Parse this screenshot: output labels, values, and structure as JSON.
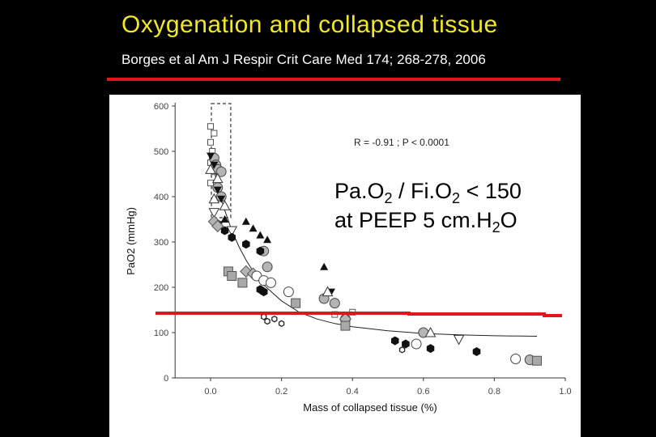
{
  "slide": {
    "title": "Oxygenation and collapsed tissue",
    "citation": "Borges et al Am J Respir Crit Care Med 174; 268-278, 2006",
    "accent_color": "#e3141a",
    "title_color": "#f2e82a"
  },
  "callout": {
    "line1_pre": "Pa.O",
    "line1_sub1": "2",
    "line1_mid": " / Fi.O",
    "line1_sub2": "2",
    "line1_post": " < 150",
    "line2_pre": "at PEEP 5 cm.H",
    "line2_sub": "2",
    "line2_post": "O"
  },
  "chart_data": {
    "type": "scatter",
    "xlabel": "Mass of collapsed tissue (%)",
    "ylabel": "PaO2 (mmHg)",
    "xlim": [
      -0.1,
      1.0
    ],
    "ylim": [
      0,
      600
    ],
    "xticks": [
      "0.0",
      "0.2",
      "0.4",
      "0.6",
      "0.8",
      "1.0"
    ],
    "xtick_values": [
      0,
      0.2,
      0.4,
      0.6,
      0.8,
      1.0
    ],
    "yticks": [
      "0",
      "100",
      "200",
      "300",
      "400",
      "500",
      "600"
    ],
    "ytick_values": [
      0,
      100,
      200,
      300,
      400,
      500,
      600
    ],
    "annotation": "R = -0.91 ; P < 0.0001",
    "threshold_line_y": 150,
    "threshold_color": "#e3141a",
    "highlight_box": {
      "x": [
        0.0,
        0.05
      ],
      "y": [
        0,
        600
      ]
    },
    "fit_curve": [
      [
        0.0,
        500
      ],
      [
        0.02,
        420
      ],
      [
        0.04,
        370
      ],
      [
        0.06,
        325
      ],
      [
        0.08,
        290
      ],
      [
        0.1,
        260
      ],
      [
        0.12,
        235
      ],
      [
        0.15,
        205
      ],
      [
        0.2,
        170
      ],
      [
        0.25,
        145
      ],
      [
        0.3,
        130
      ],
      [
        0.35,
        120
      ],
      [
        0.4,
        113
      ],
      [
        0.5,
        104
      ],
      [
        0.6,
        98
      ],
      [
        0.7,
        95
      ],
      [
        0.8,
        93
      ],
      [
        0.92,
        92
      ]
    ],
    "series": [
      {
        "marker": "open-square",
        "points": [
          [
            0.0,
            555
          ],
          [
            0.01,
            540
          ],
          [
            0.0,
            520
          ],
          [
            0.005,
            500
          ],
          [
            0.0,
            475
          ],
          [
            0.01,
            455
          ],
          [
            0.0,
            430
          ],
          [
            0.35,
            140
          ],
          [
            0.4,
            145
          ]
        ]
      },
      {
        "marker": "gray-circle",
        "points": [
          [
            0.01,
            485
          ],
          [
            0.015,
            470
          ],
          [
            0.02,
            460
          ],
          [
            0.03,
            455
          ],
          [
            0.02,
            420
          ],
          [
            0.03,
            400
          ],
          [
            0.15,
            280
          ],
          [
            0.16,
            245
          ],
          [
            0.32,
            175
          ],
          [
            0.35,
            165
          ],
          [
            0.38,
            130
          ],
          [
            0.6,
            100
          ],
          [
            0.9,
            40
          ]
        ]
      },
      {
        "marker": "filled-triangle-down",
        "points": [
          [
            0.0,
            490
          ],
          [
            0.01,
            470
          ],
          [
            0.02,
            415
          ],
          [
            0.03,
            395
          ],
          [
            0.34,
            190
          ]
        ]
      },
      {
        "marker": "open-triangle",
        "points": [
          [
            0.0,
            460
          ],
          [
            0.02,
            440
          ],
          [
            0.01,
            395
          ],
          [
            0.04,
            380
          ],
          [
            0.33,
            190
          ],
          [
            0.62,
            100
          ]
        ]
      },
      {
        "marker": "open-triangle-down",
        "points": [
          [
            0.01,
            365
          ],
          [
            0.02,
            335
          ],
          [
            0.06,
            325
          ],
          [
            0.7,
            85
          ]
        ]
      },
      {
        "marker": "filled-triangle",
        "points": [
          [
            0.04,
            350
          ],
          [
            0.1,
            345
          ],
          [
            0.12,
            330
          ],
          [
            0.14,
            315
          ],
          [
            0.16,
            305
          ],
          [
            0.32,
            245
          ]
        ]
      },
      {
        "marker": "filled-hexagon",
        "points": [
          [
            0.02,
            340
          ],
          [
            0.04,
            325
          ],
          [
            0.06,
            310
          ],
          [
            0.1,
            295
          ],
          [
            0.14,
            280
          ],
          [
            0.15,
            190
          ],
          [
            0.14,
            195
          ],
          [
            0.52,
            82
          ],
          [
            0.55,
            75
          ],
          [
            0.62,
            65
          ],
          [
            0.75,
            58
          ]
        ]
      },
      {
        "marker": "gray-diamond",
        "points": [
          [
            0.01,
            345
          ],
          [
            0.02,
            335
          ],
          [
            0.1,
            235
          ],
          [
            0.12,
            230
          ],
          [
            0.38,
            130
          ]
        ]
      },
      {
        "marker": "gray-square",
        "points": [
          [
            0.05,
            235
          ],
          [
            0.06,
            225
          ],
          [
            0.09,
            210
          ],
          [
            0.24,
            165
          ],
          [
            0.38,
            115
          ],
          [
            0.92,
            38
          ]
        ]
      },
      {
        "marker": "open-circle",
        "points": [
          [
            0.13,
            225
          ],
          [
            0.15,
            215
          ],
          [
            0.17,
            210
          ],
          [
            0.22,
            190
          ],
          [
            0.58,
            75
          ],
          [
            0.86,
            42
          ]
        ]
      },
      {
        "marker": "small-hexagon",
        "points": [
          [
            0.15,
            135
          ],
          [
            0.18,
            130
          ],
          [
            0.2,
            120
          ],
          [
            0.16,
            125
          ],
          [
            0.54,
            62
          ]
        ]
      }
    ]
  }
}
